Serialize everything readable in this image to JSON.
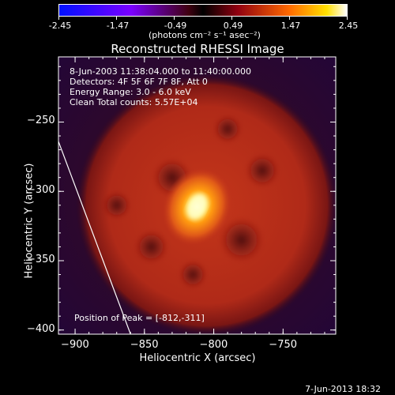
{
  "colorbar": {
    "ticks": [
      "-2.45",
      "-1.47",
      "-0.49",
      "0.49",
      "1.47",
      "2.45"
    ],
    "units": "(photons cm⁻² s⁻¹ asec⁻²)"
  },
  "annotations": {
    "time_range": "8-Jun-2003 11:38:04.000 to 11:40:00.000",
    "detectors": "Detectors: 4F 5F 6F 7F 8F, Att 0",
    "energy": "Energy Range: 3.0 - 6.0 keV",
    "clean": "Clean    Total counts: 5.57E+04",
    "peak": "Position of Peak = [-812,-311]"
  },
  "timestamp": "7-Jun-2013 18:32",
  "chart_data": {
    "type": "heatmap",
    "title": "Reconstructed RHESSI Image",
    "xlabel": "Heliocentric X (arcsec)",
    "ylabel": "Heliocentric Y (arcsec)",
    "xlim": [
      -912,
      -712
    ],
    "ylim": [
      -403,
      -203
    ],
    "xticks": [
      -900,
      -850,
      -800,
      -750
    ],
    "yticks": [
      -250,
      -300,
      -350,
      -400
    ],
    "xtick_labels": [
      "−900",
      "−850",
      "−800",
      "−750"
    ],
    "ytick_labels": [
      "−250",
      "−300",
      "−350",
      "−400"
    ],
    "colorbar_range": [
      -2.45,
      2.45
    ],
    "peak": {
      "x": -812,
      "y": -311
    },
    "limb_line": [
      [
        -912,
        -264
      ],
      [
        -860,
        -403
      ]
    ],
    "source_ring": {
      "center": [
        -805,
        -310
      ],
      "radius": 90
    },
    "colors": {
      "low": "#000000",
      "mid": "#c83c1e",
      "high": "#ffffff",
      "line": "#ffffff"
    }
  }
}
